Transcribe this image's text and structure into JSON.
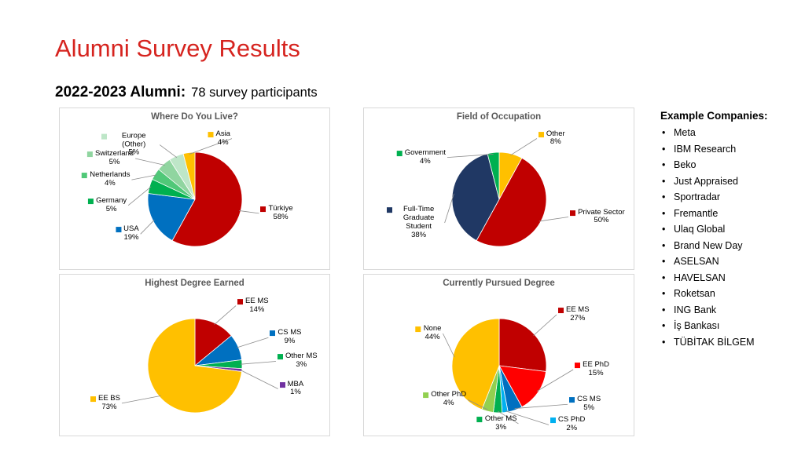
{
  "slide": {
    "title": "Alumni Survey Results",
    "title_color": "#D6241F",
    "subtitle_bold": "2022-2023 Alumni:",
    "subtitle_rest": "78 survey participants"
  },
  "companies": {
    "heading": "Example Companies:",
    "items": [
      "Meta",
      "IBM Research",
      "Beko",
      "Just Appraised",
      "Sportradar",
      "Fremantle",
      "Ulaq Global",
      "Brand New Day",
      "ASELSAN",
      "HAVELSAN",
      "Roketsan",
      "ING Bank",
      "İş Bankası",
      "TÜBİTAK BİLGEM"
    ]
  },
  "chart_data": [
    {
      "type": "pie",
      "title": "Where Do You Live?",
      "start_angle_deg": 0,
      "direction": "clockwise",
      "unit": "%",
      "slices": [
        {
          "label": "Türkiye",
          "value": 58,
          "pct": "58%",
          "color": "#C00000",
          "label_offset": [
            6,
            -2
          ]
        },
        {
          "label": "USA",
          "value": 19,
          "pct": "19%",
          "color": "#0070C0",
          "label_offset": [
            0,
            8
          ]
        },
        {
          "label": "Germany",
          "value": 5,
          "pct": "5%",
          "color": "#00B050",
          "label_offset": [
            -10,
            30
          ]
        },
        {
          "label": "Netherlands",
          "value": 4,
          "pct": "4%",
          "color": "#50C878",
          "label_offset": [
            -15,
            18
          ]
        },
        {
          "label": "Switzerland",
          "value": 5,
          "pct": "5%",
          "color": "#90D5A0",
          "label_offset": [
            -25,
            8
          ]
        },
        {
          "label": "Europe (Other)",
          "value": 5,
          "pct": "5%",
          "color": "#BEE6C8",
          "label_offset": [
            -15,
            4
          ]
        },
        {
          "label": "Asia",
          "value": 4,
          "pct": "4%",
          "color": "#FFC000",
          "label_offset": [
            55,
            2
          ]
        }
      ]
    },
    {
      "type": "pie",
      "title": "Field of Occupation",
      "start_angle_deg": 0,
      "direction": "clockwise",
      "unit": "%",
      "slices": [
        {
          "label": "Other",
          "value": 8,
          "pct": "8%",
          "color": "#FFC000",
          "label_offset": [
            30,
            0
          ]
        },
        {
          "label": "Private Sector",
          "value": 50,
          "pct": "50%",
          "color": "#C00000",
          "label_offset": [
            20,
            -16
          ]
        },
        {
          "label": "Full-Time Graduate Student",
          "value": 38,
          "pct": "38%",
          "color": "#203864",
          "label_offset": [
            8,
            40
          ]
        },
        {
          "label": "Government",
          "value": 4,
          "pct": "4%",
          "color": "#00B050",
          "label_offset": [
            -58,
            26
          ]
        }
      ]
    },
    {
      "type": "pie",
      "title": "Highest Degree Earned",
      "start_angle_deg": 0,
      "direction": "clockwise",
      "unit": "%",
      "slices": [
        {
          "label": "EE MS",
          "value": 14,
          "pct": "14%",
          "color": "#C00000",
          "label_offset": [
            20,
            -4
          ]
        },
        {
          "label": "CS MS",
          "value": 9,
          "pct": "9%",
          "color": "#0070C0",
          "label_offset": [
            22,
            -4
          ]
        },
        {
          "label": "Other MS",
          "value": 3,
          "pct": "3%",
          "color": "#00B050",
          "label_offset": [
            25,
            -3
          ]
        },
        {
          "label": "MBA",
          "value": 1,
          "pct": "1%",
          "color": "#7030A0",
          "label_offset": [
            28,
            22
          ]
        },
        {
          "label": "EE BS",
          "value": 73,
          "pct": "73%",
          "color": "#FFC000",
          "label_offset": [
            -35,
            -5
          ]
        }
      ]
    },
    {
      "type": "pie",
      "title": "Currently Pursued Degree",
      "start_angle_deg": 0,
      "direction": "clockwise",
      "unit": "%",
      "slices": [
        {
          "label": "EE MS",
          "value": 27,
          "pct": "27%",
          "color": "#C00000",
          "label_offset": [
            15,
            -12
          ]
        },
        {
          "label": "EE PhD",
          "value": 15,
          "pct": "15%",
          "color": "#FF0000",
          "label_offset": [
            30,
            -40
          ]
        },
        {
          "label": "CS MS",
          "value": 5,
          "pct": "5%",
          "color": "#0070C0",
          "label_offset": [
            62,
            -26
          ]
        },
        {
          "label": "CS PhD",
          "value": 2,
          "pct": "2%",
          "color": "#00B0F0",
          "label_offset": [
            55,
            -4
          ]
        },
        {
          "label": "Other MS",
          "value": 3,
          "pct": "3%",
          "color": "#00B050",
          "label_offset": [
            25,
            -6
          ]
        },
        {
          "label": "Other PhD",
          "value": 4,
          "pct": "4%",
          "color": "#92D050",
          "label_offset": [
            -22,
            -34
          ]
        },
        {
          "label": "None",
          "value": 44,
          "pct": "44%",
          "color": "#FFC000",
          "label_offset": [
            5,
            -26
          ]
        }
      ]
    }
  ]
}
